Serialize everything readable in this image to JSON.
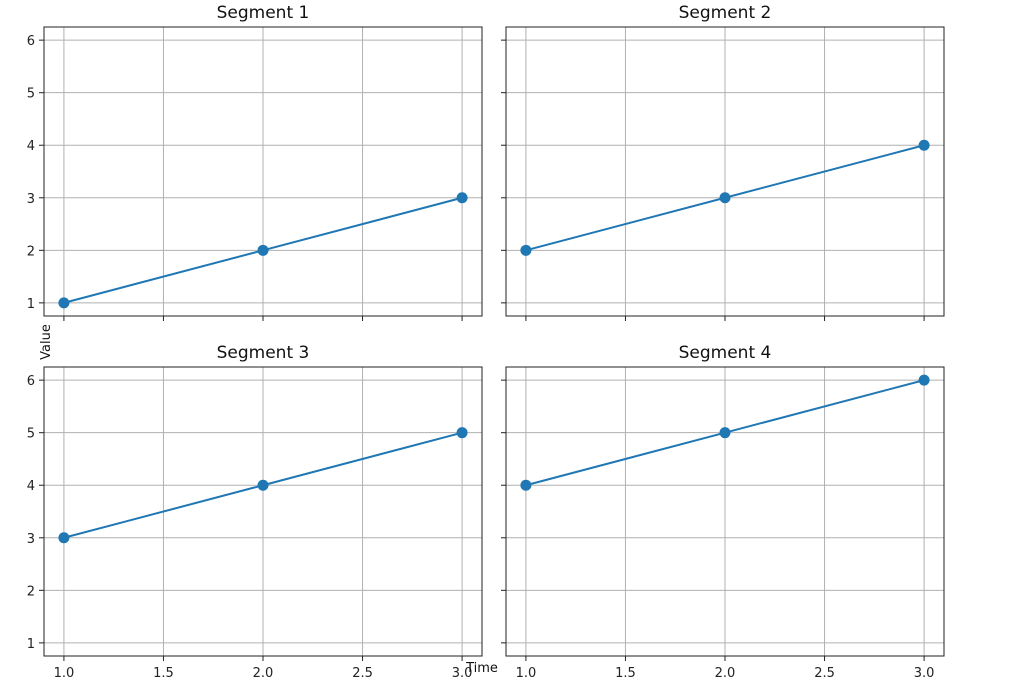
{
  "chart_data": {
    "type": "line",
    "layout": "2x2 grid, shared x and y axes",
    "xlabel": "Time",
    "ylabel": "Value",
    "xlim": [
      0.9,
      3.1
    ],
    "ylim": [
      0.75,
      6.25
    ],
    "x_ticks": [
      "1.0",
      "1.5",
      "2.0",
      "2.5",
      "3.0"
    ],
    "y_ticks": [
      "1",
      "2",
      "3",
      "4",
      "5",
      "6"
    ],
    "grid": true,
    "line_color": "#1f77b4",
    "marker": "circle",
    "panels": [
      {
        "title": "Segment 1",
        "x": [
          1,
          2,
          3
        ],
        "y": [
          1,
          2,
          3
        ]
      },
      {
        "title": "Segment 2",
        "x": [
          1,
          2,
          3
        ],
        "y": [
          2,
          3,
          4
        ]
      },
      {
        "title": "Segment 3",
        "x": [
          1,
          2,
          3
        ],
        "y": [
          3,
          4,
          5
        ]
      },
      {
        "title": "Segment 4",
        "x": [
          1,
          2,
          3
        ],
        "y": [
          4,
          5,
          6
        ]
      }
    ]
  }
}
